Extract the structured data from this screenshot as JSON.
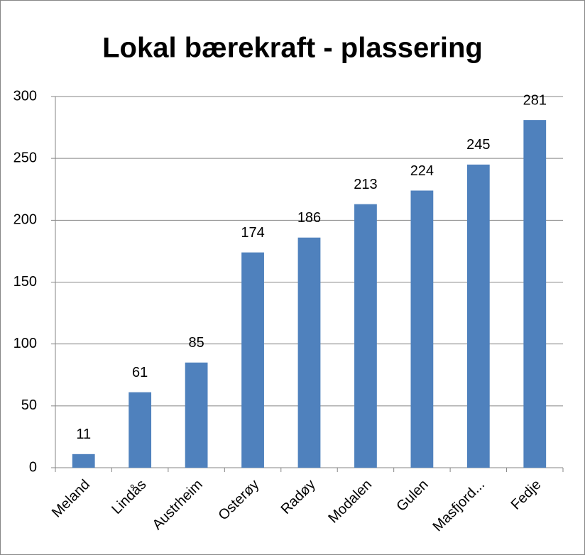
{
  "chart_data": {
    "type": "bar",
    "title": "Lokal bærekraft - plassering",
    "categories": [
      "Meland",
      "Lindås",
      "Austrheim",
      "Osterøy",
      "Radøy",
      "Modalen",
      "Gulen",
      "Masfjord...",
      "Fedje"
    ],
    "values": [
      11,
      61,
      85,
      174,
      186,
      213,
      224,
      245,
      281
    ],
    "color": "#4f81bd",
    "ylim": [
      0,
      300
    ],
    "yticks": [
      0,
      50,
      100,
      150,
      200,
      250,
      300
    ],
    "grid": true
  }
}
